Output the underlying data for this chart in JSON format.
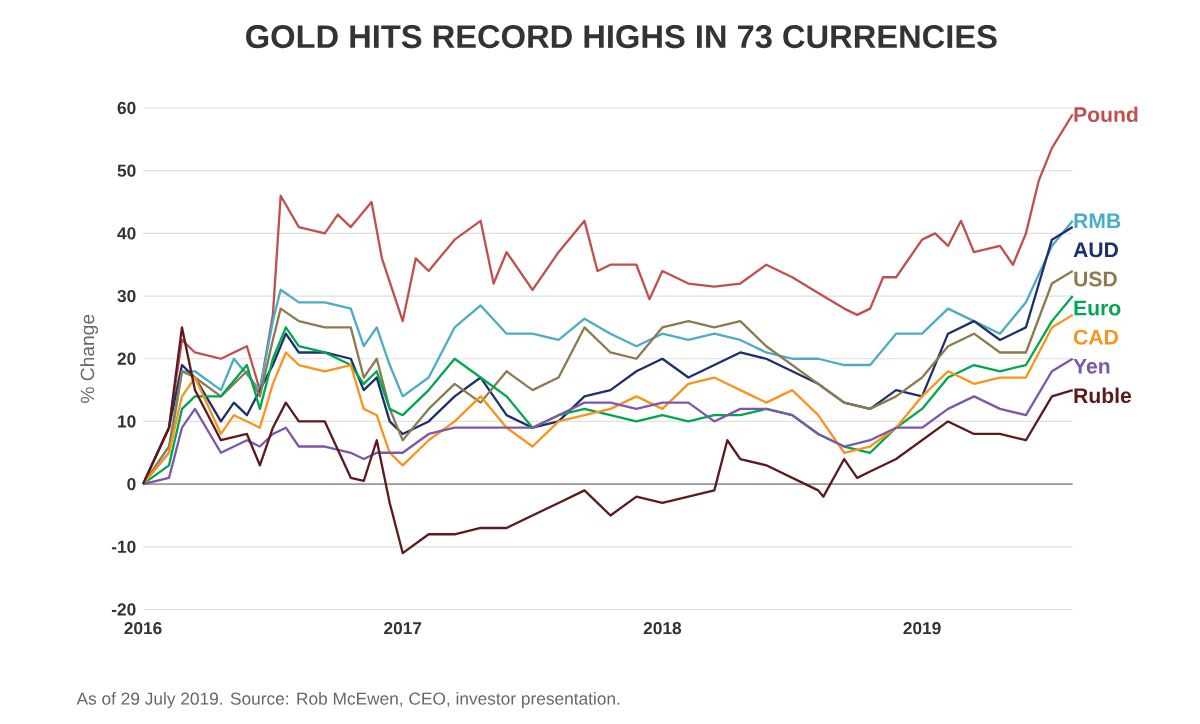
{
  "chart_data": {
    "type": "line",
    "title": "GOLD HITS RECORD HIGHS IN 73 CURRENCIES",
    "ylabel": "% Change",
    "annotations": [
      "As of 29 July 2019. Source: Rob McEwen, CEO, investor presentation."
    ],
    "xlim": [
      2016,
      2019.58
    ],
    "xticks": [
      2016,
      2017,
      2018,
      2019
    ],
    "ylim": [
      -20,
      60
    ],
    "yticks": [
      -20,
      -10,
      0,
      10,
      20,
      30,
      40,
      50,
      60
    ],
    "grid": "y",
    "ref_lines": [
      {
        "axis": "y",
        "value": 0,
        "color": "#9a9a9a"
      }
    ],
    "series": [
      {
        "name": "Pound",
        "color": "#c0504d",
        "x": [
          2016.0,
          2016.1,
          2016.15,
          2016.2,
          2016.3,
          2016.4,
          2016.45,
          2016.5,
          2016.53,
          2016.6,
          2016.7,
          2016.75,
          2016.8,
          2016.88,
          2016.92,
          2017.0,
          2017.05,
          2017.1,
          2017.2,
          2017.3,
          2017.35,
          2017.4,
          2017.5,
          2017.6,
          2017.7,
          2017.75,
          2017.8,
          2017.9,
          2017.95,
          2018.0,
          2018.1,
          2018.2,
          2018.3,
          2018.4,
          2018.5,
          2018.6,
          2018.7,
          2018.75,
          2018.8,
          2018.85,
          2018.9,
          2019.0,
          2019.05,
          2019.1,
          2019.15,
          2019.2,
          2019.3,
          2019.35,
          2019.4,
          2019.45,
          2019.5,
          2019.58
        ],
        "values": [
          0,
          9,
          23,
          21,
          20,
          22,
          15,
          27,
          46,
          41,
          40,
          43,
          41,
          45,
          36,
          26,
          36,
          34,
          39,
          42,
          32,
          37,
          31,
          37,
          42,
          34,
          35,
          35,
          29.5,
          34,
          32,
          31.5,
          32,
          35,
          33,
          30.5,
          28,
          27,
          28,
          33,
          33,
          39,
          40,
          38,
          42,
          37,
          38,
          35,
          40,
          48.5,
          53.6,
          59
        ]
      },
      {
        "name": "RMB",
        "color": "#4bacc6",
        "x": [
          2016.0,
          2016.1,
          2016.15,
          2016.2,
          2016.3,
          2016.35,
          2016.45,
          2016.5,
          2016.53,
          2016.6,
          2016.7,
          2016.8,
          2016.85,
          2016.9,
          2016.95,
          2017.0,
          2017.1,
          2017.2,
          2017.3,
          2017.4,
          2017.5,
          2017.6,
          2017.7,
          2017.8,
          2017.9,
          2018.0,
          2018.1,
          2018.2,
          2018.3,
          2018.4,
          2018.5,
          2018.6,
          2018.7,
          2018.8,
          2018.9,
          2019.0,
          2019.1,
          2019.2,
          2019.3,
          2019.4,
          2019.5,
          2019.58
        ],
        "values": [
          0,
          5,
          18,
          18,
          15,
          20,
          15,
          26,
          31,
          29,
          29,
          28,
          22,
          25,
          19,
          14,
          17,
          25,
          28.5,
          24,
          24,
          23,
          26.4,
          24,
          22,
          24,
          23,
          24,
          23,
          21,
          20,
          20,
          19,
          19,
          24,
          24,
          28,
          26,
          24,
          29,
          38,
          42
        ]
      },
      {
        "name": "AUD",
        "color": "#1f2f6b",
        "x": [
          2016.0,
          2016.1,
          2016.15,
          2016.2,
          2016.3,
          2016.35,
          2016.4,
          2016.5,
          2016.55,
          2016.6,
          2016.7,
          2016.8,
          2016.85,
          2016.9,
          2016.95,
          2017.0,
          2017.1,
          2017.2,
          2017.3,
          2017.4,
          2017.5,
          2017.6,
          2017.7,
          2017.8,
          2017.9,
          2018.0,
          2018.1,
          2018.2,
          2018.3,
          2018.4,
          2018.5,
          2018.6,
          2018.7,
          2018.8,
          2018.9,
          2019.0,
          2019.1,
          2019.2,
          2019.3,
          2019.4,
          2019.5,
          2019.58
        ],
        "values": [
          0,
          9,
          19,
          17,
          10,
          13,
          11,
          19,
          24,
          21,
          21,
          20,
          15,
          17,
          10,
          8,
          10,
          14,
          17,
          11,
          9,
          10,
          14,
          15,
          18,
          20,
          17,
          19,
          21,
          20,
          18,
          16,
          13,
          12,
          15,
          14,
          24,
          26,
          23,
          25,
          39,
          41
        ]
      },
      {
        "name": "USD",
        "color": "#8c7b50",
        "x": [
          2016.0,
          2016.1,
          2016.15,
          2016.2,
          2016.3,
          2016.4,
          2016.45,
          2016.5,
          2016.53,
          2016.6,
          2016.7,
          2016.8,
          2016.85,
          2016.9,
          2016.95,
          2017.0,
          2017.1,
          2017.2,
          2017.3,
          2017.4,
          2017.5,
          2017.6,
          2017.7,
          2017.8,
          2017.9,
          2018.0,
          2018.1,
          2018.2,
          2018.3,
          2018.4,
          2018.5,
          2018.6,
          2018.7,
          2018.8,
          2018.9,
          2019.0,
          2019.1,
          2019.2,
          2019.3,
          2019.4,
          2019.5,
          2019.58
        ],
        "values": [
          0,
          6,
          18,
          17,
          14,
          18,
          14,
          23,
          28,
          26,
          25,
          25,
          17,
          20,
          12,
          7,
          12,
          16,
          13,
          18,
          15,
          17,
          25,
          21,
          20,
          25,
          26,
          25,
          26,
          22,
          19,
          16,
          13,
          12,
          14,
          17,
          22,
          24,
          21,
          21,
          32,
          34
        ]
      },
      {
        "name": "Euro",
        "color": "#00a651",
        "x": [
          2016.0,
          2016.1,
          2016.15,
          2016.2,
          2016.3,
          2016.4,
          2016.45,
          2016.5,
          2016.55,
          2016.6,
          2016.7,
          2016.8,
          2016.85,
          2016.9,
          2016.95,
          2017.0,
          2017.1,
          2017.2,
          2017.3,
          2017.4,
          2017.5,
          2017.6,
          2017.7,
          2017.8,
          2017.9,
          2018.0,
          2018.1,
          2018.2,
          2018.3,
          2018.4,
          2018.5,
          2018.6,
          2018.7,
          2018.8,
          2018.9,
          2019.0,
          2019.1,
          2019.2,
          2019.3,
          2019.4,
          2019.5,
          2019.58
        ],
        "values": [
          0,
          3,
          12,
          14,
          14,
          19,
          12,
          20,
          25,
          22,
          21,
          19,
          16,
          18,
          12,
          11,
          15,
          20,
          17,
          14,
          9,
          11,
          12,
          11,
          10,
          11,
          10,
          11,
          11,
          12,
          11,
          8,
          6,
          5,
          9,
          12,
          17,
          19,
          18,
          19,
          26,
          30
        ]
      },
      {
        "name": "CAD",
        "color": "#f7941d",
        "x": [
          2016.0,
          2016.1,
          2016.15,
          2016.2,
          2016.3,
          2016.35,
          2016.45,
          2016.5,
          2016.55,
          2016.6,
          2016.7,
          2016.8,
          2016.85,
          2016.9,
          2016.95,
          2017.0,
          2017.1,
          2017.2,
          2017.3,
          2017.4,
          2017.5,
          2017.6,
          2017.7,
          2017.8,
          2017.9,
          2018.0,
          2018.1,
          2018.2,
          2018.3,
          2018.4,
          2018.5,
          2018.6,
          2018.7,
          2018.8,
          2018.9,
          2019.0,
          2019.1,
          2019.2,
          2019.3,
          2019.4,
          2019.5,
          2019.58
        ],
        "values": [
          0,
          5,
          14,
          17,
          8,
          11,
          9,
          16,
          21,
          19,
          18,
          19,
          12,
          11,
          5,
          3,
          7,
          10,
          14,
          9,
          6,
          10,
          11,
          12,
          14,
          12,
          16,
          17,
          15,
          13,
          15,
          11,
          5,
          6,
          9,
          14,
          18,
          16,
          17,
          17,
          25,
          27
        ]
      },
      {
        "name": "Yen",
        "color": "#7e57a8",
        "x": [
          2016.0,
          2016.1,
          2016.15,
          2016.2,
          2016.3,
          2016.4,
          2016.45,
          2016.5,
          2016.55,
          2016.6,
          2016.7,
          2016.8,
          2016.85,
          2016.9,
          2016.95,
          2017.0,
          2017.1,
          2017.2,
          2017.3,
          2017.4,
          2017.5,
          2017.6,
          2017.7,
          2017.8,
          2017.9,
          2018.0,
          2018.1,
          2018.2,
          2018.3,
          2018.4,
          2018.5,
          2018.6,
          2018.7,
          2018.8,
          2018.9,
          2019.0,
          2019.1,
          2019.2,
          2019.3,
          2019.4,
          2019.5,
          2019.58
        ],
        "values": [
          0,
          1,
          9,
          12,
          5,
          7,
          6,
          8,
          9,
          6,
          6,
          5,
          4,
          5,
          5,
          5,
          8,
          9,
          9,
          9,
          9,
          11,
          13,
          13,
          12,
          13,
          13,
          10,
          12,
          12,
          11,
          8,
          6,
          7,
          9,
          9,
          12,
          14,
          12,
          11,
          18,
          20
        ]
      },
      {
        "name": "Ruble",
        "color": "#5c1a1b",
        "x": [
          2016.0,
          2016.1,
          2016.15,
          2016.2,
          2016.3,
          2016.4,
          2016.45,
          2016.5,
          2016.55,
          2016.6,
          2016.7,
          2016.8,
          2016.85,
          2016.9,
          2016.95,
          2017.0,
          2017.1,
          2017.2,
          2017.3,
          2017.4,
          2017.5,
          2017.6,
          2017.7,
          2017.8,
          2017.9,
          2018.0,
          2018.1,
          2018.2,
          2018.25,
          2018.3,
          2018.4,
          2018.5,
          2018.6,
          2018.62,
          2018.7,
          2018.75,
          2018.8,
          2018.9,
          2019.0,
          2019.1,
          2019.2,
          2019.3,
          2019.4,
          2019.5,
          2019.58
        ],
        "values": [
          0,
          9,
          25,
          15,
          7,
          8,
          3,
          9,
          13,
          10,
          10,
          1,
          0.5,
          7,
          -3,
          -11,
          -8,
          -8,
          -7,
          -7,
          -5,
          -3,
          -1,
          -5,
          -2,
          -3,
          -2,
          -1,
          7,
          4,
          3,
          1,
          -1,
          -2,
          4,
          1,
          2,
          4,
          7,
          10,
          8,
          8,
          7,
          14,
          15
        ]
      }
    ]
  }
}
